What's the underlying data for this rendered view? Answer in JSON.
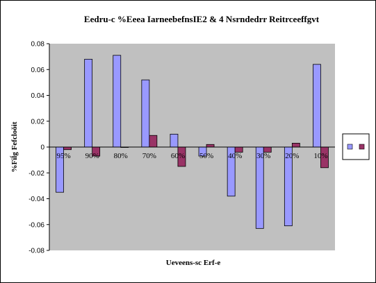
{
  "chart_data": {
    "type": "bar",
    "title": "Eedru-c %Eeea IarneebefnsIE2 & 4 Nsrndedrr Reitrceeffgvt",
    "xlabel": "Ueveens-sc Erf-e",
    "ylabel": "%Fiĺg Fefcloǒit",
    "categories": [
      "95%",
      "90%",
      "80%",
      "70%",
      "60%",
      "50%",
      "40%",
      "30%",
      "20%",
      "10%"
    ],
    "series": [
      {
        "color": "#9999ff",
        "values": [
          -0.035,
          0.068,
          0.071,
          0.052,
          0.01,
          -0.007,
          -0.038,
          -0.063,
          -0.061,
          0.064
        ]
      },
      {
        "color": "#993366",
        "values": [
          -0.002,
          -0.007,
          0.0,
          0.009,
          -0.015,
          0.002,
          -0.004,
          -0.004,
          0.003,
          -0.016
        ]
      }
    ],
    "ylim": [
      -0.08,
      0.08
    ],
    "yticks": [
      -0.08,
      -0.06,
      -0.04,
      -0.02,
      0,
      0.02,
      0.04,
      0.06,
      0.08
    ],
    "ytick_labels": [
      "-0.08",
      "-0.06",
      "-0.04",
      "-0.02",
      "0",
      "0.02",
      "0.04",
      "0.06",
      "0.08"
    ],
    "grid": false,
    "legend": "right",
    "plot_background": "#c0c0c0"
  }
}
